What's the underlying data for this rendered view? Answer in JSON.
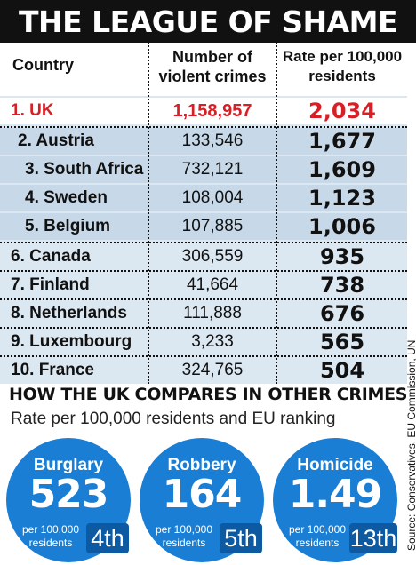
{
  "title": "THE LEAGUE OF SHAME",
  "table": {
    "headers": {
      "country": "Country",
      "crimes_line1": "Number of",
      "crimes_line2": "violent crimes",
      "rate_line1": "Rate per 100,000",
      "rate_line2": "residents"
    },
    "rows": [
      {
        "country": "1. UK",
        "crimes": "1,158,957",
        "rate": "2,034"
      },
      {
        "country": "2. Austria",
        "crimes": "133,546",
        "rate": "1,677"
      },
      {
        "country": "3. South Africa",
        "crimes": "732,121",
        "rate": "1,609"
      },
      {
        "country": "4. Sweden",
        "crimes": "108,004",
        "rate": "1,123"
      },
      {
        "country": "5. Belgium",
        "crimes": "107,885",
        "rate": "1,006"
      },
      {
        "country": "6. Canada",
        "crimes": "306,559",
        "rate": "935"
      },
      {
        "country": "7. Finland",
        "crimes": "41,664",
        "rate": "738"
      },
      {
        "country": "8. Netherlands",
        "crimes": "111,888",
        "rate": "676"
      },
      {
        "country": "9. Luxembourg",
        "crimes": "3,233",
        "rate": "565"
      },
      {
        "country": "10. France",
        "crimes": "324,765",
        "rate": "504"
      }
    ],
    "highlight_color": "#d91f26"
  },
  "source": "Source: Conservatives, EU Commission, UN",
  "comparison": {
    "title": "HOW THE UK COMPARES IN OTHER CRIMES",
    "subtitle": "Rate per 100,000 residents and EU ranking",
    "circle_color": "#1a7fd4",
    "items": [
      {
        "name": "Burglary",
        "value": "523",
        "unit_line1": "per 100,000",
        "unit_line2": "residents",
        "rank": "4th"
      },
      {
        "name": "Robbery",
        "value": "164",
        "unit_line1": "per 100,000",
        "unit_line2": "residents",
        "rank": "5th"
      },
      {
        "name": "Homicide",
        "value": "1.49",
        "unit_line1": "per 100,000",
        "unit_line2": "residents",
        "rank": "13th"
      }
    ]
  }
}
